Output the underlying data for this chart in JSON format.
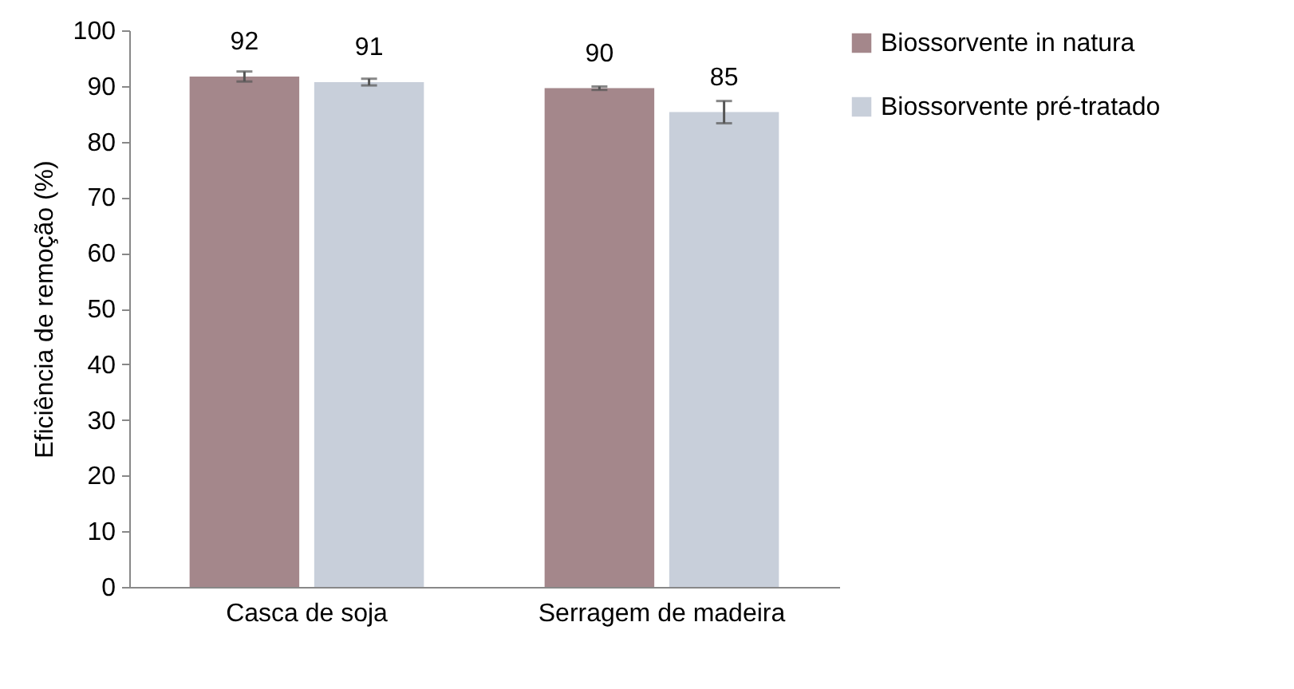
{
  "chart_data": {
    "type": "bar",
    "ylabel": "Eficiência de remoção (%)",
    "categories": [
      "Casca de soja",
      "Serragem de madeira"
    ],
    "series": [
      {
        "name": "Biossorvente in natura",
        "color": "#a4878b",
        "values": [
          91.7,
          89.6
        ],
        "errors": [
          0.9,
          0.3
        ],
        "value_labels": [
          "92",
          "90"
        ]
      },
      {
        "name": "Biossorvente pré-tratado",
        "color": "#c8cfda",
        "values": [
          90.7,
          85.3
        ],
        "errors": [
          0.6,
          2.0
        ],
        "value_labels": [
          "91",
          "85"
        ]
      }
    ],
    "ylim": [
      0,
      100
    ],
    "yticks": [
      0,
      10,
      20,
      30,
      40,
      50,
      60,
      70,
      80,
      90,
      100
    ],
    "grid": false,
    "legend": "right"
  }
}
